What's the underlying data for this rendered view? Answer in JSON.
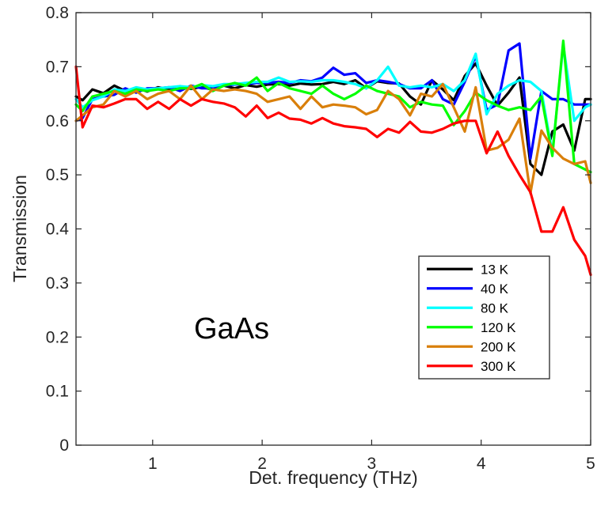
{
  "chart_data": {
    "type": "line",
    "title": "",
    "xlabel": "Det. frequency (THz)",
    "ylabel": "Transmission",
    "xlim": [
      0.3,
      5
    ],
    "ylim": [
      0,
      0.8
    ],
    "xticks": [
      "1",
      "2",
      "3",
      "4",
      "5"
    ],
    "yticks": [
      "0",
      "0.1",
      "0.2",
      "0.3",
      "0.4",
      "0.5",
      "0.6",
      "0.7",
      "0.8"
    ],
    "grid": false,
    "legend_position": "lower-right",
    "annotation": "GaAs",
    "x": [
      0.3,
      0.36,
      0.45,
      0.55,
      0.65,
      0.75,
      0.85,
      0.95,
      1.05,
      1.15,
      1.25,
      1.35,
      1.45,
      1.55,
      1.65,
      1.75,
      1.85,
      1.95,
      2.05,
      2.15,
      2.25,
      2.35,
      2.45,
      2.55,
      2.65,
      2.75,
      2.85,
      2.95,
      3.05,
      3.15,
      3.25,
      3.35,
      3.45,
      3.55,
      3.65,
      3.75,
      3.85,
      3.95,
      4.05,
      4.15,
      4.25,
      4.35,
      4.45,
      4.55,
      4.65,
      4.75,
      4.85,
      4.95,
      5.0
    ],
    "series": [
      {
        "name": "13 K",
        "color": "#000000",
        "values": [
          0.645,
          0.638,
          0.658,
          0.651,
          0.665,
          0.655,
          0.661,
          0.654,
          0.662,
          0.658,
          0.664,
          0.659,
          0.663,
          0.657,
          0.665,
          0.66,
          0.666,
          0.663,
          0.667,
          0.668,
          0.665,
          0.669,
          0.667,
          0.668,
          0.672,
          0.668,
          0.675,
          0.66,
          0.673,
          0.67,
          0.669,
          0.645,
          0.63,
          0.675,
          0.658,
          0.638,
          0.683,
          0.706,
          0.665,
          0.628,
          0.652,
          0.68,
          0.52,
          0.5,
          0.58,
          0.593,
          0.545,
          0.64,
          0.64
        ]
      },
      {
        "name": "40 K",
        "color": "#0000ff",
        "values": [
          0.6,
          0.605,
          0.64,
          0.645,
          0.648,
          0.66,
          0.652,
          0.66,
          0.66,
          0.662,
          0.655,
          0.665,
          0.66,
          0.66,
          0.665,
          0.667,
          0.668,
          0.67,
          0.67,
          0.672,
          0.67,
          0.675,
          0.673,
          0.68,
          0.698,
          0.685,
          0.688,
          0.67,
          0.675,
          0.672,
          0.668,
          0.66,
          0.66,
          0.675,
          0.64,
          0.63,
          0.672,
          0.72,
          0.62,
          0.63,
          0.73,
          0.743,
          0.53,
          0.655,
          0.64,
          0.64,
          0.63,
          0.63,
          0.63
        ]
      },
      {
        "name": "80 K",
        "color": "#00ffff",
        "values": [
          0.64,
          0.625,
          0.638,
          0.645,
          0.658,
          0.655,
          0.662,
          0.658,
          0.66,
          0.662,
          0.664,
          0.662,
          0.666,
          0.664,
          0.668,
          0.668,
          0.67,
          0.672,
          0.672,
          0.68,
          0.672,
          0.673,
          0.672,
          0.675,
          0.675,
          0.672,
          0.668,
          0.66,
          0.675,
          0.7,
          0.665,
          0.662,
          0.665,
          0.662,
          0.668,
          0.655,
          0.675,
          0.724,
          0.612,
          0.65,
          0.665,
          0.675,
          0.672,
          0.655,
          0.54,
          0.74,
          0.6,
          0.625,
          0.63
        ]
      },
      {
        "name": "120 K",
        "color": "#00ff00",
        "values": [
          0.63,
          0.618,
          0.645,
          0.65,
          0.655,
          0.65,
          0.658,
          0.655,
          0.658,
          0.655,
          0.66,
          0.66,
          0.668,
          0.655,
          0.665,
          0.67,
          0.665,
          0.68,
          0.655,
          0.67,
          0.66,
          0.655,
          0.65,
          0.665,
          0.65,
          0.64,
          0.65,
          0.665,
          0.655,
          0.65,
          0.645,
          0.625,
          0.635,
          0.63,
          0.628,
          0.592,
          0.618,
          0.652,
          0.638,
          0.628,
          0.62,
          0.625,
          0.62,
          0.645,
          0.535,
          0.748,
          0.52,
          0.51,
          0.505
        ]
      },
      {
        "name": "200 K",
        "color": "#d97f0a",
        "values": [
          0.6,
          0.61,
          0.625,
          0.63,
          0.655,
          0.645,
          0.655,
          0.64,
          0.65,
          0.655,
          0.64,
          0.665,
          0.64,
          0.658,
          0.655,
          0.658,
          0.655,
          0.65,
          0.635,
          0.64,
          0.645,
          0.622,
          0.645,
          0.625,
          0.63,
          0.628,
          0.625,
          0.612,
          0.62,
          0.655,
          0.64,
          0.61,
          0.65,
          0.645,
          0.668,
          0.625,
          0.58,
          0.662,
          0.545,
          0.55,
          0.565,
          0.604,
          0.466,
          0.582,
          0.55,
          0.53,
          0.52,
          0.525,
          0.485
        ]
      },
      {
        "name": "300 K",
        "color": "#ff0000",
        "values": [
          0.7,
          0.588,
          0.628,
          0.625,
          0.632,
          0.64,
          0.64,
          0.622,
          0.635,
          0.622,
          0.64,
          0.628,
          0.64,
          0.635,
          0.632,
          0.625,
          0.608,
          0.628,
          0.605,
          0.615,
          0.604,
          0.602,
          0.595,
          0.605,
          0.595,
          0.59,
          0.588,
          0.585,
          0.57,
          0.585,
          0.578,
          0.598,
          0.58,
          0.578,
          0.585,
          0.595,
          0.6,
          0.6,
          0.54,
          0.58,
          0.535,
          0.5,
          0.468,
          0.395,
          0.395,
          0.44,
          0.38,
          0.35,
          0.315
        ]
      }
    ]
  }
}
